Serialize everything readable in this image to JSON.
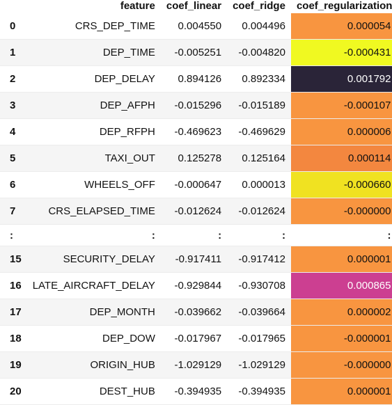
{
  "header": {
    "idx": "",
    "feature": "feature",
    "coef_linear": "coef_linear",
    "coef_ridge": "coef_ridge",
    "coef_regularization": "coef_regularization"
  },
  "rows": [
    {
      "idx": "0",
      "feature": "CRS_DEP_TIME",
      "lin": "0.004550",
      "ridge": "0.004496",
      "reg": "0.000054",
      "color": "#f89540",
      "text": "#111111"
    },
    {
      "idx": "1",
      "feature": "DEP_TIME",
      "lin": "-0.005251",
      "ridge": "-0.004820",
      "reg": "-0.000431",
      "color": "#f0f921",
      "text": "#111111"
    },
    {
      "idx": "2",
      "feature": "DEP_DELAY",
      "lin": "0.894126",
      "ridge": "0.892334",
      "reg": "0.001792",
      "color": "#2a2438",
      "text": "#ffffff"
    },
    {
      "idx": "3",
      "feature": "DEP_AFPH",
      "lin": "-0.015296",
      "ridge": "-0.015189",
      "reg": "-0.000107",
      "color": "#f89540",
      "text": "#111111"
    },
    {
      "idx": "4",
      "feature": "DEP_RFPH",
      "lin": "-0.469623",
      "ridge": "-0.469629",
      "reg": "0.000006",
      "color": "#f89540",
      "text": "#111111"
    },
    {
      "idx": "5",
      "feature": "TAXI_OUT",
      "lin": "0.125278",
      "ridge": "0.125164",
      "reg": "0.000114",
      "color": "#f3873f",
      "text": "#111111"
    },
    {
      "idx": "6",
      "feature": "WHEELS_OFF",
      "lin": "-0.000647",
      "ridge": "0.000013",
      "reg": "-0.000660",
      "color": "#f0e221",
      "text": "#111111"
    },
    {
      "idx": "7",
      "feature": "CRS_ELAPSED_TIME",
      "lin": "-0.012624",
      "ridge": "-0.012624",
      "reg": "-0.000000",
      "color": "#f89540",
      "text": "#111111"
    },
    {
      "idx": ":",
      "feature": ":",
      "lin": ":",
      "ridge": ":",
      "reg": ":",
      "color": "#ffffff",
      "text": "#111111",
      "dots": true
    },
    {
      "idx": "15",
      "feature": "SECURITY_DELAY",
      "lin": "-0.917411",
      "ridge": "-0.917412",
      "reg": "0.000001",
      "color": "#f89540",
      "text": "#111111"
    },
    {
      "idx": "16",
      "feature": "LATE_AIRCRAFT_DELAY",
      "lin": "-0.929844",
      "ridge": "-0.930708",
      "reg": "0.000865",
      "color": "#cc3f91",
      "text": "#ffffff"
    },
    {
      "idx": "17",
      "feature": "DEP_MONTH",
      "lin": "-0.039662",
      "ridge": "-0.039664",
      "reg": "0.000002",
      "color": "#f89540",
      "text": "#111111"
    },
    {
      "idx": "18",
      "feature": "DEP_DOW",
      "lin": "-0.017967",
      "ridge": "-0.017965",
      "reg": "-0.000001",
      "color": "#f89540",
      "text": "#111111"
    },
    {
      "idx": "19",
      "feature": "ORIGIN_HUB",
      "lin": "-1.029129",
      "ridge": "-1.029129",
      "reg": "-0.000000",
      "color": "#f89540",
      "text": "#111111"
    },
    {
      "idx": "20",
      "feature": "DEST_HUB",
      "lin": "-0.394935",
      "ridge": "-0.394935",
      "reg": "0.000001",
      "color": "#f89540",
      "text": "#111111"
    }
  ]
}
